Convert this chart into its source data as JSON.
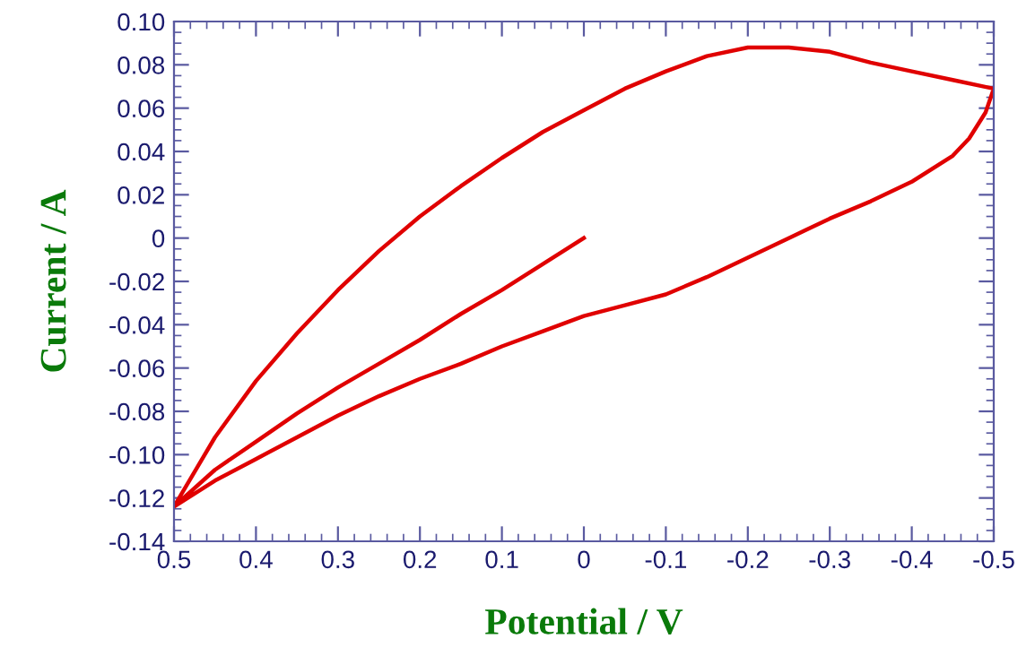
{
  "chart_data": {
    "type": "line",
    "xlabel": "Potential / V",
    "ylabel": "Current / A",
    "xlim": [
      0.5,
      -0.5
    ],
    "ylim": [
      -0.14,
      0.1
    ],
    "xticks": [
      0.5,
      0.4,
      0.3,
      0.2,
      0.1,
      0,
      -0.1,
      -0.2,
      -0.3,
      -0.4,
      -0.5
    ],
    "yticks": [
      {
        "value": 0.1,
        "label": "0.10"
      },
      0.08,
      0.06,
      0.04,
      0.02,
      0,
      -0.02,
      -0.04,
      -0.06,
      -0.08,
      {
        "value": -0.1,
        "label": "-0.10"
      },
      -0.12,
      -0.14
    ],
    "grid": false,
    "legend": false,
    "marker": "none",
    "line_style": "solid",
    "series": [
      {
        "color": "#e00000",
        "x": [
          0,
          0.05,
          0.1,
          0.15,
          0.2,
          0.25,
          0.3,
          0.35,
          0.4,
          0.45,
          0.5,
          0.45,
          0.4,
          0.35,
          0.3,
          0.25,
          0.2,
          0.15,
          0.1,
          0.05,
          0,
          -0.05,
          -0.1,
          -0.15,
          -0.2,
          -0.25,
          -0.3,
          -0.35,
          -0.4,
          -0.45,
          -0.5,
          -0.49,
          -0.47,
          -0.45,
          -0.4,
          -0.35,
          -0.3,
          -0.25,
          -0.2,
          -0.15,
          -0.1,
          -0.05,
          0,
          0.05,
          0.1,
          0.15,
          0.2,
          0.25,
          0.3,
          0.35,
          0.4,
          0.45,
          0.5
        ],
        "values": [
          0,
          -0.012,
          -0.024,
          -0.035,
          -0.047,
          -0.058,
          -0.069,
          -0.081,
          -0.094,
          -0.107,
          -0.124,
          -0.092,
          -0.066,
          -0.044,
          -0.024,
          -0.006,
          0.01,
          0.024,
          0.037,
          0.049,
          0.059,
          0.069,
          0.077,
          0.084,
          0.088,
          0.088,
          0.086,
          0.081,
          0.077,
          0.073,
          0.069,
          0.058,
          0.046,
          0.038,
          0.026,
          0.017,
          0.009,
          0.0,
          -0.009,
          -0.018,
          -0.026,
          -0.031,
          -0.036,
          -0.043,
          -0.05,
          -0.058,
          -0.065,
          -0.073,
          -0.082,
          -0.092,
          -0.102,
          -0.112,
          -0.124
        ]
      }
    ]
  }
}
